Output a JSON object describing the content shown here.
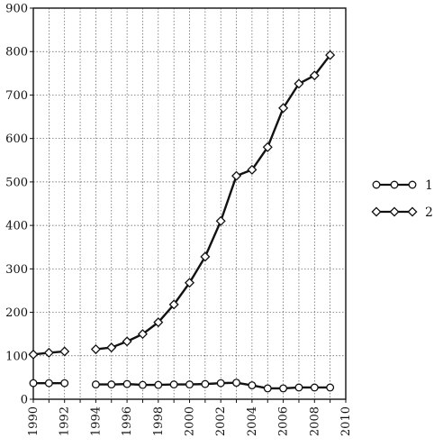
{
  "chart_data": {
    "type": "line",
    "title": "",
    "xlabel": "",
    "ylabel": "",
    "xlim": [
      1990,
      2010
    ],
    "ylim": [
      0,
      900
    ],
    "grid": true,
    "x_ticks": [
      1990,
      1992,
      1994,
      1996,
      1998,
      2000,
      2002,
      2004,
      2006,
      2008,
      2010
    ],
    "y_ticks": [
      0,
      100,
      200,
      300,
      400,
      500,
      600,
      700,
      800,
      900
    ],
    "legend_position": "right",
    "series": [
      {
        "name": "1",
        "marker": "circle",
        "segments": [
          {
            "x": [
              1990,
              1991,
              1992
            ],
            "y": [
              37,
              37,
              37
            ]
          },
          {
            "x": [
              1994,
              1995,
              1996,
              1997,
              1998,
              1999,
              2000,
              2001,
              2002,
              2003,
              2004,
              2005,
              2006,
              2007,
              2008,
              2009
            ],
            "y": [
              34,
              34,
              35,
              33,
              33,
              34,
              34,
              35,
              37,
              38,
              32,
              25,
              25,
              27,
              27,
              27
            ]
          }
        ]
      },
      {
        "name": "2",
        "marker": "diamond",
        "segments": [
          {
            "x": [
              1990,
              1991,
              1992
            ],
            "y": [
              103,
              107,
              110
            ]
          },
          {
            "x": [
              1994,
              1995,
              1996,
              1997,
              1998,
              1999,
              2000,
              2001,
              2002,
              2003,
              2004,
              2005,
              2006,
              2007,
              2008,
              2009
            ],
            "y": [
              115,
              119,
              133,
              150,
              177,
              218,
              268,
              328,
              410,
              514,
              528,
              580,
              670,
              726,
              745,
              792
            ]
          }
        ]
      }
    ]
  }
}
